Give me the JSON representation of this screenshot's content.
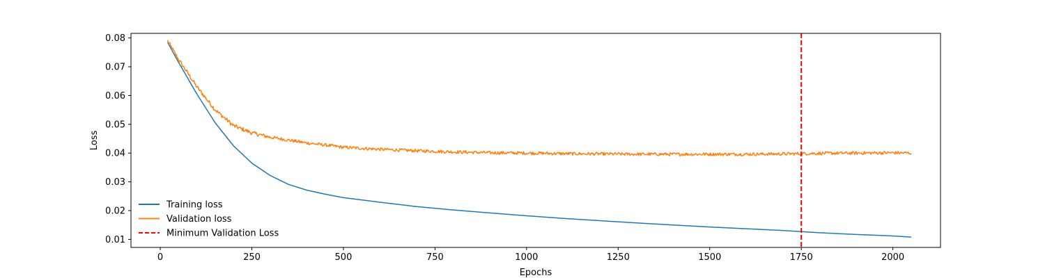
{
  "chart_data": {
    "type": "line",
    "title": "",
    "xlabel": "Epochs",
    "ylabel": "Loss",
    "xlim": [
      -80,
      2130
    ],
    "ylim": [
      0.0072,
      0.0816
    ],
    "xticks": [
      0,
      250,
      500,
      750,
      1000,
      1250,
      1500,
      1750,
      2000
    ],
    "yticks": [
      0.01,
      0.02,
      0.03,
      0.04,
      0.05,
      0.06,
      0.07,
      0.08
    ],
    "x_range": [
      20,
      2050
    ],
    "grid": false,
    "legend": "bottom-left",
    "series": [
      {
        "name": "Training loss",
        "color": "#1f77b4",
        "style": "solid",
        "x": [
          20,
          50,
          100,
          150,
          200,
          250,
          300,
          350,
          400,
          450,
          500,
          600,
          700,
          800,
          900,
          1000,
          1100,
          1200,
          1300,
          1400,
          1500,
          1600,
          1700,
          1750,
          1800,
          1900,
          2000,
          2050
        ],
        "y": [
          0.0785,
          0.0715,
          0.0605,
          0.0505,
          0.0425,
          0.0365,
          0.0322,
          0.0291,
          0.0271,
          0.0257,
          0.0245,
          0.0229,
          0.0214,
          0.0202,
          0.0192,
          0.0182,
          0.0173,
          0.0165,
          0.0157,
          0.015,
          0.0143,
          0.0137,
          0.0131,
          0.0127,
          0.0123,
          0.0117,
          0.0112,
          0.0108
        ]
      },
      {
        "name": "Validation loss",
        "color": "#ff7f0e",
        "style": "solid",
        "x": [
          20,
          50,
          100,
          150,
          200,
          250,
          300,
          350,
          400,
          450,
          500,
          600,
          700,
          800,
          900,
          1000,
          1100,
          1200,
          1300,
          1400,
          1500,
          1600,
          1700,
          1750,
          1800,
          1900,
          2000,
          2050
        ],
        "y": [
          0.079,
          0.0725,
          0.063,
          0.055,
          0.0495,
          0.047,
          0.0455,
          0.0445,
          0.0435,
          0.0428,
          0.042,
          0.0413,
          0.0408,
          0.0404,
          0.0401,
          0.04,
          0.0398,
          0.0397,
          0.0396,
          0.0396,
          0.0396,
          0.0396,
          0.0397,
          0.0398,
          0.0399,
          0.04,
          0.0401,
          0.04
        ]
      }
    ],
    "vlines": [
      {
        "name": "Minimum Validation Loss",
        "x": 1750,
        "color": "#ff0000",
        "style": "dashed"
      }
    ]
  }
}
